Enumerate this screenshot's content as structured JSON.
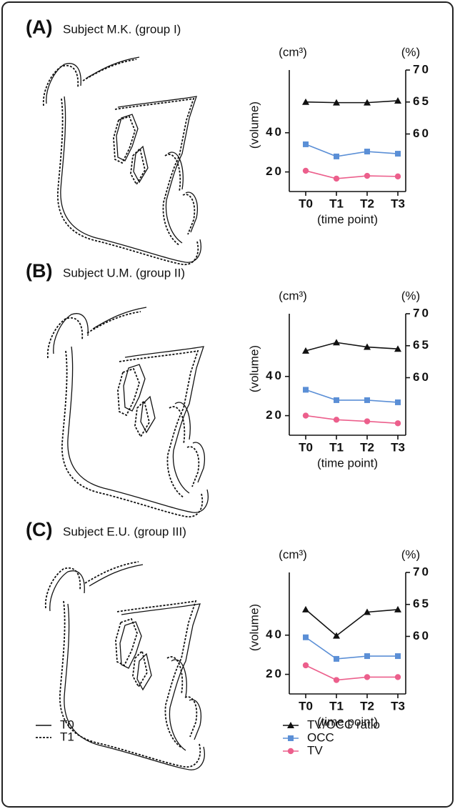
{
  "chart_data": [
    {
      "type": "line",
      "panel_label": "(A)",
      "title": "Subject M.K. (group I)",
      "categories": [
        "T0",
        "T1",
        "T2",
        "T3"
      ],
      "x_label": "(time point)",
      "y_label": "(volume)",
      "y_unit": "(cm³)",
      "y2_unit": "(%)",
      "ylim": [
        10,
        72
      ],
      "yticks": [
        20,
        40
      ],
      "y2lim": [
        51,
        70
      ],
      "y2ticks": [
        60,
        65,
        70
      ],
      "series": [
        {
          "name": "TV/OCC ratio",
          "color": "#111111",
          "marker": "triangle",
          "axis": "y2",
          "values": [
            65.0,
            64.9,
            64.9,
            65.2
          ]
        },
        {
          "name": "OCC",
          "color": "#5b8fd6",
          "marker": "square",
          "values": [
            34.1,
            27.9,
            30.4,
            29.3
          ]
        },
        {
          "name": "TV",
          "color": "#ec5f8c",
          "marker": "circle",
          "values": [
            20.6,
            16.6,
            18.0,
            17.7
          ]
        }
      ]
    },
    {
      "type": "line",
      "panel_label": "(B)",
      "title": "Subject U.M. (group II)",
      "categories": [
        "T0",
        "T1",
        "T2",
        "T3"
      ],
      "x_label": "(time point)",
      "y_label": "(volume)",
      "y_unit": "(cm³)",
      "y2_unit": "(%)",
      "ylim": [
        10,
        72
      ],
      "yticks": [
        20,
        40
      ],
      "y2lim": [
        51,
        70
      ],
      "y2ticks": [
        60,
        65,
        70
      ],
      "series": [
        {
          "name": "TV/OCC ratio",
          "color": "#111111",
          "marker": "triangle",
          "axis": "y2",
          "values": [
            64.2,
            65.5,
            64.8,
            64.5
          ]
        },
        {
          "name": "OCC",
          "color": "#5b8fd6",
          "marker": "square",
          "values": [
            33.2,
            27.9,
            27.9,
            26.8
          ]
        },
        {
          "name": "TV",
          "color": "#ec5f8c",
          "marker": "circle",
          "values": [
            20.0,
            17.9,
            17.1,
            16.1
          ]
        }
      ]
    },
    {
      "type": "line",
      "panel_label": "(C)",
      "title": "Subject E.U. (group III)",
      "categories": [
        "T0",
        "T1",
        "T2",
        "T3"
      ],
      "x_label": "(time point)",
      "y_label": "(volume)",
      "y_unit": "(cm³)",
      "y2_unit": "(%)",
      "ylim": [
        10,
        72
      ],
      "yticks": [
        20,
        40
      ],
      "y2lim": [
        51,
        70
      ],
      "y2ticks": [
        60,
        65,
        70
      ],
      "series": [
        {
          "name": "TV/OCC ratio",
          "color": "#111111",
          "marker": "triangle",
          "axis": "y2",
          "values": [
            64.2,
            60.1,
            63.8,
            64.2
          ]
        },
        {
          "name": "OCC",
          "color": "#5b8fd6",
          "marker": "square",
          "values": [
            38.9,
            27.9,
            29.3,
            29.3
          ]
        },
        {
          "name": "TV",
          "color": "#ec5f8c",
          "marker": "circle",
          "values": [
            24.6,
            17.1,
            18.6,
            18.6
          ]
        }
      ]
    }
  ],
  "tracing_legend": [
    "T0",
    "T1"
  ]
}
